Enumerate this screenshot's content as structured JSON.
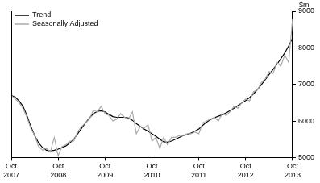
{
  "chart_data": {
    "type": "line",
    "ylabel": "$m",
    "categories": [
      "Oct 2007",
      null,
      null,
      null,
      null,
      null,
      null,
      null,
      null,
      null,
      null,
      null,
      "Oct 2008",
      null,
      null,
      null,
      null,
      null,
      null,
      null,
      null,
      null,
      null,
      null,
      "Oct 2009",
      null,
      null,
      null,
      null,
      null,
      null,
      null,
      null,
      null,
      null,
      null,
      "Oct 2010",
      null,
      null,
      null,
      null,
      null,
      null,
      null,
      null,
      null,
      null,
      null,
      "Oct 2011",
      null,
      null,
      null,
      null,
      null,
      null,
      null,
      null,
      null,
      null,
      null,
      "Oct 2012",
      null,
      null,
      null,
      null,
      null,
      null,
      null,
      null,
      null,
      null,
      null,
      "Oct 2013"
    ],
    "series": [
      {
        "name": "Trend",
        "color": "#000000",
        "values": [
          6700,
          6650,
          6550,
          6400,
          6150,
          5850,
          5600,
          5400,
          5270,
          5200,
          5180,
          5200,
          5230,
          5270,
          5320,
          5400,
          5500,
          5650,
          5800,
          5950,
          6080,
          6200,
          6260,
          6280,
          6250,
          6180,
          6120,
          6100,
          6100,
          6100,
          6080,
          6020,
          5930,
          5850,
          5780,
          5720,
          5650,
          5580,
          5500,
          5430,
          5420,
          5450,
          5500,
          5550,
          5600,
          5630,
          5670,
          5720,
          5780,
          5880,
          5970,
          6040,
          6090,
          6130,
          6170,
          6220,
          6280,
          6350,
          6420,
          6490,
          6560,
          6640,
          6740,
          6860,
          6990,
          7130,
          7270,
          7410,
          7550,
          7700,
          7860,
          8050,
          8270
        ]
      },
      {
        "name": "Seasonally Adjusted",
        "color": "#aaaaaa",
        "values": [
          6700,
          6600,
          6500,
          6350,
          6100,
          5800,
          5600,
          5300,
          5200,
          5250,
          5150,
          5550,
          5050,
          5300,
          5350,
          5450,
          5450,
          5700,
          5850,
          5950,
          6050,
          6300,
          6250,
          6400,
          6200,
          6150,
          6000,
          6050,
          6200,
          6100,
          6050,
          6250,
          5650,
          5850,
          5800,
          5900,
          5450,
          5550,
          5250,
          5550,
          5350,
          5550,
          5550,
          5600,
          5600,
          5650,
          5650,
          5700,
          5650,
          5950,
          6000,
          6050,
          6100,
          6000,
          6200,
          6150,
          6250,
          6400,
          6350,
          6500,
          6600,
          6550,
          6800,
          6850,
          7050,
          7150,
          7350,
          7300,
          7600,
          7500,
          7800,
          7600,
          8800
        ]
      }
    ],
    "ylim": [
      5000,
      9000
    ],
    "yticks": [
      5000,
      6000,
      7000,
      8000,
      9000
    ],
    "grid": false,
    "legend": "upper left"
  }
}
